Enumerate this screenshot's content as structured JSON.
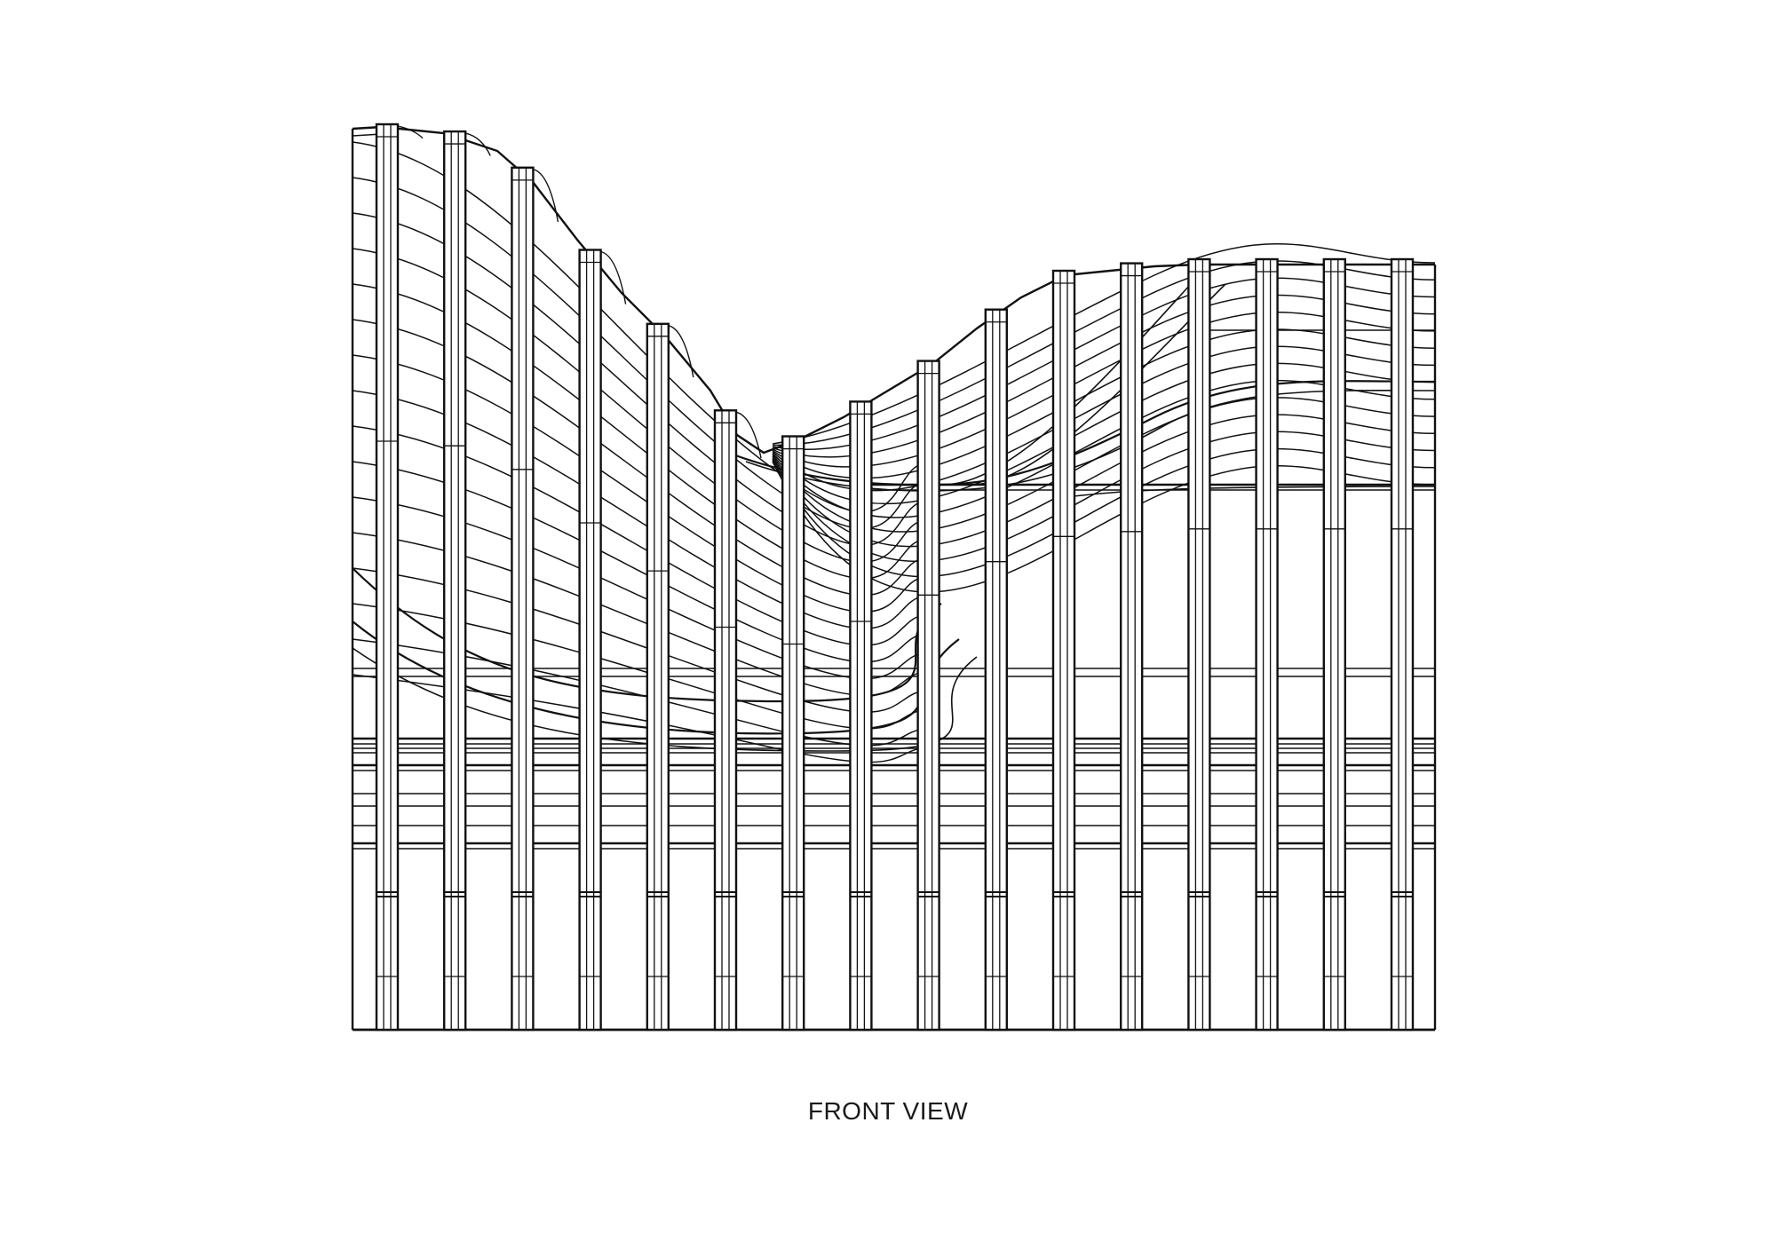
{
  "drawing": {
    "caption": "FRONT VIEW",
    "line_color": "#111111",
    "background_color": "#ffffff"
  }
}
